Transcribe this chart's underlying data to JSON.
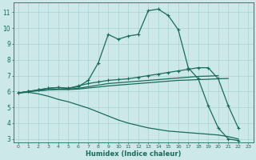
{
  "xlabel": "Humidex (Indice chaleur)",
  "bg_color": "#cce8e8",
  "line_color": "#1a6b5a",
  "xlim": [
    -0.5,
    23.5
  ],
  "ylim": [
    2.8,
    11.6
  ],
  "yticks": [
    3,
    4,
    5,
    6,
    7,
    8,
    9,
    10,
    11
  ],
  "xticks": [
    0,
    1,
    2,
    3,
    4,
    5,
    6,
    7,
    8,
    9,
    10,
    11,
    12,
    13,
    14,
    15,
    16,
    17,
    18,
    19,
    20,
    21,
    22,
    23
  ],
  "series": [
    {
      "x": [
        0,
        1,
        2,
        3,
        4,
        5,
        6,
        7,
        8,
        9,
        10,
        11,
        12,
        13,
        14,
        15,
        16,
        17,
        18,
        19,
        20,
        21,
        22
      ],
      "y": [
        5.9,
        6.0,
        6.1,
        6.2,
        6.25,
        6.2,
        6.3,
        6.7,
        7.8,
        9.6,
        9.3,
        9.5,
        9.6,
        11.1,
        11.2,
        10.8,
        9.9,
        7.5,
        6.8,
        5.1,
        3.7,
        3.0,
        2.9
      ],
      "marker": true,
      "lw": 0.9
    },
    {
      "x": [
        0,
        1,
        2,
        3,
        4,
        5,
        6,
        7,
        8,
        9,
        10,
        11,
        12,
        13,
        14,
        15,
        16,
        17,
        18,
        19,
        20,
        21,
        22
      ],
      "y": [
        5.9,
        6.0,
        6.1,
        6.2,
        6.25,
        6.2,
        6.35,
        6.5,
        6.6,
        6.7,
        6.75,
        6.8,
        6.9,
        7.0,
        7.1,
        7.2,
        7.3,
        7.4,
        7.5,
        7.5,
        6.8,
        5.1,
        3.7
      ],
      "marker": true,
      "lw": 0.9
    },
    {
      "x": [
        0,
        1,
        2,
        3,
        4,
        5,
        6,
        7,
        8,
        9,
        10,
        11,
        12,
        13,
        14,
        15,
        16,
        17,
        18,
        19,
        20
      ],
      "y": [
        5.9,
        6.0,
        6.05,
        6.1,
        6.15,
        6.15,
        6.2,
        6.3,
        6.4,
        6.5,
        6.55,
        6.6,
        6.65,
        6.7,
        6.75,
        6.8,
        6.85,
        6.9,
        6.95,
        6.97,
        7.0
      ],
      "marker": false,
      "lw": 0.9
    },
    {
      "x": [
        0,
        1,
        2,
        3,
        4,
        5,
        6,
        7,
        8,
        9,
        10,
        11,
        12,
        13,
        14,
        15,
        16,
        17,
        18,
        19,
        20,
        21
      ],
      "y": [
        5.9,
        6.0,
        6.05,
        6.1,
        6.12,
        6.12,
        6.15,
        6.22,
        6.28,
        6.35,
        6.4,
        6.45,
        6.5,
        6.55,
        6.6,
        6.65,
        6.7,
        6.72,
        6.75,
        6.77,
        6.8,
        6.82
      ],
      "marker": false,
      "lw": 0.9
    },
    {
      "x": [
        0,
        1,
        2,
        3,
        4,
        5,
        6,
        7,
        8,
        9,
        10,
        11,
        12,
        13,
        14,
        15,
        16,
        17,
        18,
        19,
        20,
        21,
        22
      ],
      "y": [
        5.9,
        5.95,
        5.85,
        5.7,
        5.5,
        5.35,
        5.15,
        4.95,
        4.7,
        4.45,
        4.2,
        4.0,
        3.85,
        3.7,
        3.6,
        3.5,
        3.45,
        3.4,
        3.35,
        3.3,
        3.25,
        3.15,
        3.0
      ],
      "marker": false,
      "lw": 0.9
    }
  ]
}
